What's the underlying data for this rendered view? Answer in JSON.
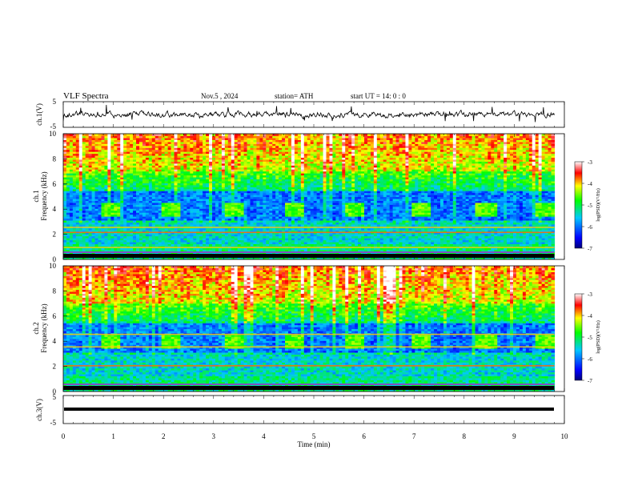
{
  "header": {
    "title": "VLF Spectra",
    "date": "Nov.5 , 2024",
    "station": "station= ATH",
    "start": "start UT = 14: 0 : 0"
  },
  "chart_data": [
    {
      "type": "line",
      "name": "ch1-waveform",
      "ylabel": "ch.1(V)",
      "ylim": [
        -5,
        5
      ],
      "yticks": [
        "5",
        "-5"
      ],
      "xlim": [
        0,
        10
      ],
      "baseline": 0,
      "description_values": {
        "mean": 0,
        "typical_amplitude": 1,
        "spike_amplitude": 3.5
      }
    },
    {
      "type": "heatmap",
      "name": "ch1-spectrogram",
      "ylabel": "ch.1 Frequency (kHz)",
      "ylim": [
        0,
        10
      ],
      "yticks": [
        "0",
        "2",
        "4",
        "6",
        "8",
        "10"
      ],
      "xlim": [
        0,
        10
      ],
      "colorbar": {
        "label": "log(PSD)(V²/Hz)",
        "range": [
          -7,
          -3
        ],
        "ticks": [
          "-3",
          "-4",
          "-5",
          "-6",
          "-7"
        ]
      },
      "periodic_bursts_min": [
        0.9,
        2.1,
        3.4,
        4.6,
        5.8,
        7.1,
        8.4,
        9.6
      ],
      "burst_frequency_khz": [
        3.5,
        4.5
      ],
      "tone_lines_khz": [
        2.2,
        2.6,
        1.0
      ]
    },
    {
      "type": "heatmap",
      "name": "ch2-spectrogram",
      "ylabel": "ch.2 Frequency (kHz)",
      "ylim": [
        0,
        10
      ],
      "yticks": [
        "0",
        "2",
        "4",
        "6",
        "8",
        "10"
      ],
      "xlim": [
        0,
        10
      ],
      "colorbar": {
        "label": "log(PSD)(V²/Hz)",
        "range": [
          -7,
          -3
        ],
        "ticks": [
          "-3",
          "-4",
          "-5",
          "-6",
          "-7"
        ]
      },
      "periodic_bursts_min": [
        0.9,
        2.1,
        3.4,
        4.6,
        5.8,
        7.1,
        8.4,
        9.6
      ],
      "burst_frequency_khz": [
        3.5,
        4.5
      ],
      "tone_lines_khz": [
        2.1,
        3.6,
        4.6
      ]
    },
    {
      "type": "line",
      "name": "ch3-waveform",
      "ylabel": "ch.3(V)",
      "ylim": [
        -5,
        5
      ],
      "yticks": [
        "5",
        "-5"
      ],
      "xlim": [
        0,
        10
      ],
      "baseline": 0,
      "xlabel": "Time (min)",
      "xticks": [
        "0",
        "1",
        "2",
        "3",
        "4",
        "5",
        "6",
        "7",
        "8",
        "9",
        "10"
      ]
    }
  ]
}
